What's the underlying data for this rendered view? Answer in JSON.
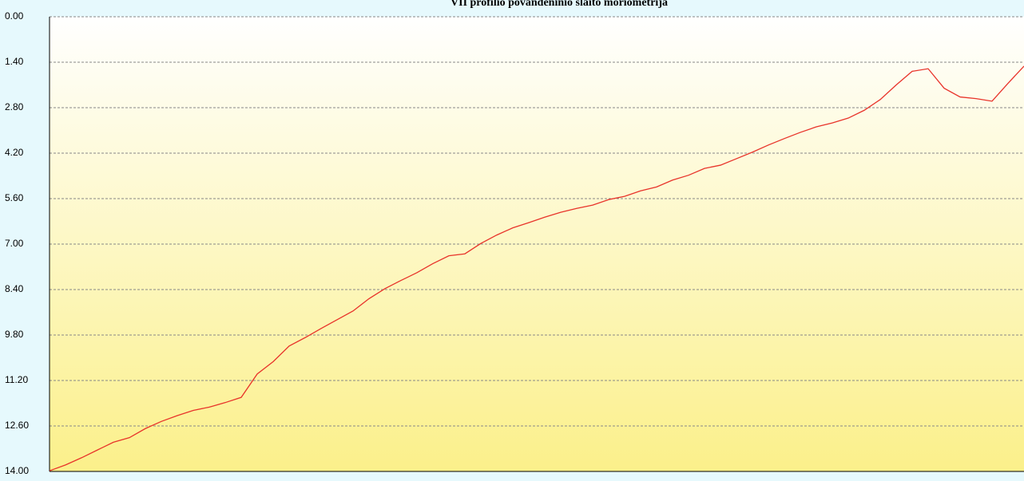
{
  "chart_data": {
    "type": "line",
    "title": "VII profilio povandeninio slaito moriometrija",
    "categories": [
      null,
      null,
      null,
      null,
      null,
      null,
      null,
      null,
      null,
      null,
      null,
      null,
      null,
      null,
      null,
      null,
      null,
      null,
      null,
      null,
      null,
      null,
      null,
      null,
      null,
      null,
      null,
      null,
      null,
      null,
      null,
      null,
      null,
      null,
      null,
      null,
      null,
      null,
      null,
      null,
      null,
      null,
      null,
      null,
      null,
      null,
      null,
      null,
      null,
      null,
      null,
      null,
      null,
      null,
      null,
      null,
      null,
      null,
      null,
      null,
      null,
      null
    ],
    "series": [
      {
        "name": null,
        "color": "#e8332a",
        "values": [
          13.98,
          13.8,
          13.58,
          13.34,
          13.1,
          12.96,
          12.68,
          12.46,
          12.28,
          12.12,
          12.02,
          11.88,
          11.72,
          11.0,
          10.62,
          10.14,
          9.88,
          9.6,
          9.33,
          9.06,
          8.68,
          8.37,
          8.12,
          7.88,
          7.6,
          7.36,
          7.3,
          6.98,
          6.72,
          6.5,
          6.34,
          6.17,
          6.02,
          5.9,
          5.8,
          5.63,
          5.53,
          5.36,
          5.24,
          5.03,
          4.88,
          4.67,
          4.57,
          4.37,
          4.17,
          3.95,
          3.75,
          3.56,
          3.39,
          3.27,
          3.12,
          2.88,
          2.55,
          2.1,
          1.68,
          1.6,
          2.2,
          2.47,
          2.52,
          2.6,
          2.05,
          1.52
        ]
      }
    ],
    "ylim": [
      14,
      0
    ],
    "yticks": [
      {
        "value": 0,
        "label": "0.00"
      },
      {
        "value": 1.4,
        "label": "1.40"
      },
      {
        "value": 2.8,
        "label": "2.80"
      },
      {
        "value": 4.2,
        "label": "4.20"
      },
      {
        "value": 5.6,
        "label": "5.60"
      },
      {
        "value": 7,
        "label": "7.00"
      },
      {
        "value": 8.4,
        "label": "8.40"
      },
      {
        "value": 9.8,
        "label": "9.80"
      },
      {
        "value": 11.2,
        "label": "11.20"
      },
      {
        "value": 12.6,
        "label": "12.60"
      },
      {
        "value": 14,
        "label": "14.00"
      }
    ],
    "grid": true
  }
}
